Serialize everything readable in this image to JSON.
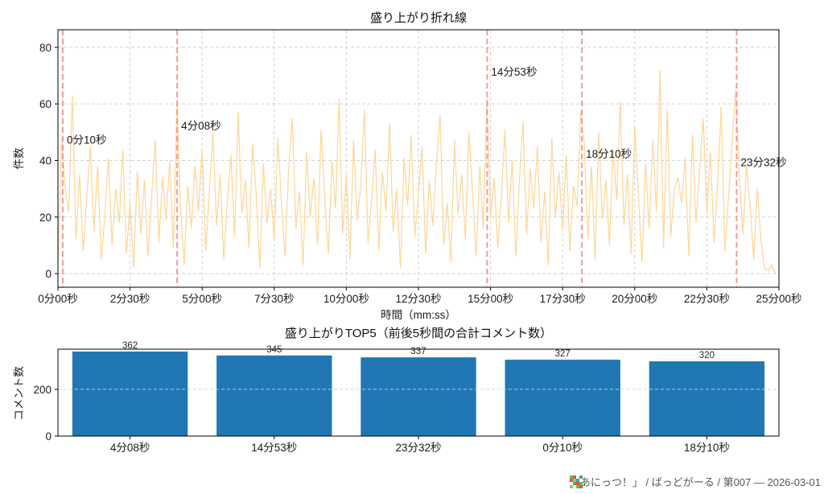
{
  "figure": {
    "background": "#ffffff"
  },
  "colors": {
    "line": "#ffd596",
    "highlight_line": "#f58888",
    "annotation_text": "#dc143c",
    "bar": "#2077b4",
    "grid": "#d3d3d3",
    "axis": "#000000",
    "text": "#1a1a1a",
    "footer_text": "#595959"
  },
  "footer": {
    "icon": "pixel-art-icon",
    "text": "「あにっつ！」 / ばっどがーる / 第007 — 2026-03-01"
  },
  "chart_data": [
    {
      "type": "line",
      "title": "盛り上がり折れ線",
      "xlabel": "時間（mm:ss）",
      "ylabel": "件数",
      "grid": true,
      "legend": "none",
      "ylim": [
        -4.8,
        86.2
      ],
      "yticks": [
        0,
        20,
        40,
        60,
        80
      ],
      "xlim_seconds": [
        0,
        1500
      ],
      "xticks": [
        {
          "s": 0,
          "label": "0分00秒"
        },
        {
          "s": 150,
          "label": "2分30秒"
        },
        {
          "s": 300,
          "label": "5分00秒"
        },
        {
          "s": 450,
          "label": "7分30秒"
        },
        {
          "s": 600,
          "label": "10分00秒"
        },
        {
          "s": 750,
          "label": "12分30秒"
        },
        {
          "s": 900,
          "label": "15分00秒"
        },
        {
          "s": 1050,
          "label": "17分30秒"
        },
        {
          "s": 1200,
          "label": "20分00秒"
        },
        {
          "s": 1350,
          "label": "22分30秒"
        },
        {
          "s": 1500,
          "label": "25分00秒"
        }
      ],
      "highlights": [
        {
          "s": 10,
          "label": "0分10秒",
          "label_value": 46
        },
        {
          "s": 248,
          "label": "4分08秒",
          "label_value": 51
        },
        {
          "s": 893,
          "label": "14分53秒",
          "label_value": 70
        },
        {
          "s": 1090,
          "label": "18分10秒",
          "label_value": 41
        },
        {
          "s": 1412,
          "label": "23分32秒",
          "label_value": 38
        }
      ],
      "series": [
        {
          "name": "件数",
          "t_step_seconds": 7.5,
          "values": [
            3,
            48,
            30,
            22,
            63,
            12,
            35,
            8,
            27,
            45,
            15,
            38,
            5,
            20,
            41,
            10,
            30,
            18,
            44,
            7,
            25,
            2,
            36,
            14,
            33,
            6,
            28,
            47,
            11,
            34,
            19,
            40,
            9,
            60,
            24,
            3,
            31,
            16,
            38,
            22,
            44,
            8,
            29,
            50,
            17,
            35,
            5,
            26,
            42,
            13,
            57,
            21,
            33,
            9,
            46,
            28,
            2,
            39,
            18,
            30,
            12,
            48,
            25,
            6,
            37,
            55,
            16,
            29,
            3,
            43,
            20,
            34,
            10,
            51,
            27,
            7,
            40,
            23,
            62,
            14,
            35,
            5,
            47,
            19,
            31,
            58,
            11,
            26,
            44,
            8,
            36,
            22,
            53,
            15,
            30,
            2,
            41,
            24,
            49,
            13,
            28,
            45,
            7,
            33,
            17,
            39,
            56,
            10,
            25,
            4,
            47,
            21,
            35,
            12,
            50,
            29,
            6,
            38,
            16,
            62,
            20,
            34,
            9,
            27,
            51,
            18,
            40,
            6,
            32,
            54,
            14,
            37,
            23,
            45,
            11,
            29,
            3,
            48,
            20,
            36,
            15,
            42,
            8,
            31,
            24,
            57,
            46,
            12,
            38,
            5,
            50,
            19,
            33,
            10,
            44,
            26,
            61,
            17,
            35,
            7,
            52,
            28,
            4,
            39,
            16,
            47,
            22,
            72,
            9,
            58,
            13,
            30,
            34,
            25,
            41,
            6,
            49,
            18,
            37,
            55,
            21,
            43,
            11,
            32,
            59,
            8,
            27,
            46,
            65,
            35,
            14,
            38,
            24,
            5,
            30,
            12,
            2,
            1,
            3,
            0
          ]
        }
      ]
    },
    {
      "type": "bar",
      "title": "盛り上がりTOP5（前後5秒間の合計コメント数）",
      "xlabel": "",
      "ylabel": "コメント数",
      "ylim": [
        0,
        372
      ],
      "yticks": [
        0,
        200
      ],
      "grid": true,
      "categories": [
        "4分08秒",
        "14分53秒",
        "23分32秒",
        "0分10秒",
        "18分10秒"
      ],
      "values": [
        362,
        345,
        337,
        327,
        320
      ]
    }
  ]
}
